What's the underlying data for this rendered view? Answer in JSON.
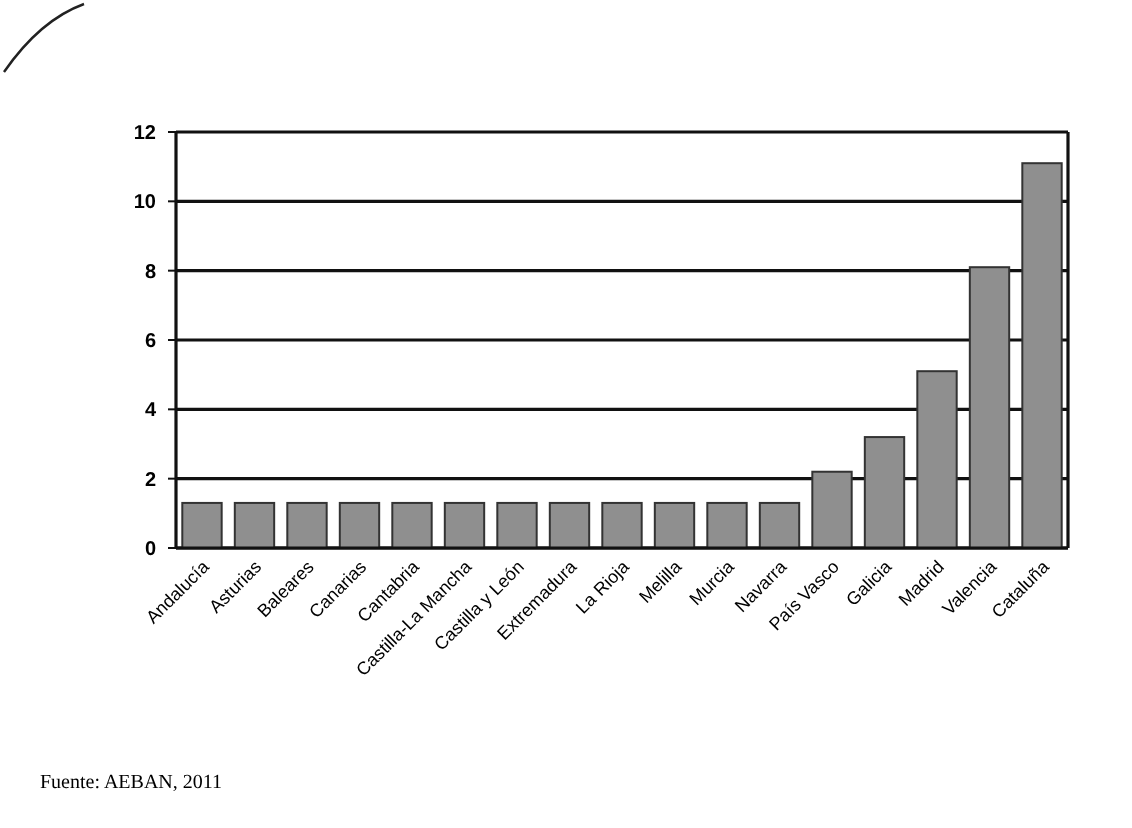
{
  "chart_data": {
    "type": "bar",
    "categories": [
      "Andalucía",
      "Asturias",
      "Baleares",
      "Canarias",
      "Cantabria",
      "Castilla-La Mancha",
      "Castilla y León",
      "Extremadura",
      "La Rioja",
      "Melilla",
      "Murcia",
      "Navarra",
      "País Vasco",
      "Galicia",
      "Madrid",
      "Valencia",
      "Cataluña"
    ],
    "values": [
      1.3,
      1.3,
      1.3,
      1.3,
      1.3,
      1.3,
      1.3,
      1.3,
      1.3,
      1.3,
      1.3,
      1.3,
      2.2,
      3.2,
      5.1,
      8.1,
      11.1
    ],
    "color": "#8f8f8f",
    "ylim": [
      0,
      12
    ],
    "yticks": [
      0,
      2,
      4,
      6,
      8,
      10,
      12
    ],
    "grid": "y",
    "annotations": [
      "Fuente: AEBAN, 2011"
    ]
  }
}
